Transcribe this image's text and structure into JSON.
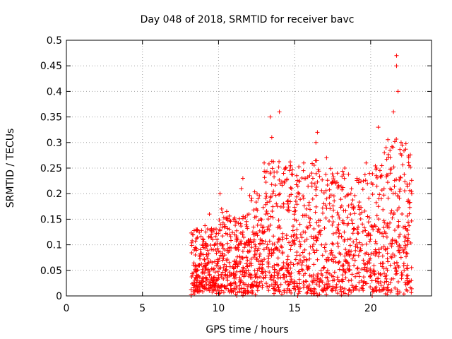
{
  "chart_data": {
    "type": "scatter",
    "title": "Day 048 of 2018, SRMTID for receiver bavc",
    "xlabel": "GPS time / hours",
    "ylabel": "SRMTID / TECUs",
    "xlim": [
      0,
      24
    ],
    "ylim": [
      0,
      0.5
    ],
    "xticks": [
      0,
      5,
      10,
      15,
      20
    ],
    "yticks": [
      0,
      0.05,
      0.1,
      0.15,
      0.2,
      0.25,
      0.3,
      0.35,
      0.4,
      0.45,
      0.5
    ],
    "grid": true,
    "marker": "+",
    "color": "#ff0000",
    "series": [
      {
        "name": "SRMTID bavc",
        "x_range": [
          8.2,
          22.7
        ],
        "notes": "dense cloud of several thousand points; representative points listed",
        "points": [
          [
            8.2,
            0.0
          ],
          [
            8.2,
            0.002
          ],
          [
            8.3,
            0.12
          ],
          [
            8.4,
            0.09
          ],
          [
            8.5,
            0.05
          ],
          [
            8.6,
            0.13
          ],
          [
            8.8,
            0.08
          ],
          [
            8.9,
            0.03
          ],
          [
            9.0,
            0.11
          ],
          [
            9.2,
            0.06
          ],
          [
            9.4,
            0.16
          ],
          [
            9.5,
            0.02
          ],
          [
            9.7,
            0.13
          ],
          [
            9.8,
            0.09
          ],
          [
            10.0,
            0.04
          ],
          [
            10.1,
            0.2
          ],
          [
            10.2,
            0.17
          ],
          [
            10.4,
            0.08
          ],
          [
            10.6,
            0.12
          ],
          [
            10.8,
            0.02
          ],
          [
            11.0,
            0.15
          ],
          [
            11.2,
            0.0
          ],
          [
            11.3,
            0.09
          ],
          [
            11.5,
            0.21
          ],
          [
            11.6,
            0.23
          ],
          [
            11.8,
            0.05
          ],
          [
            12.0,
            0.16
          ],
          [
            12.2,
            0.01
          ],
          [
            12.4,
            0.1
          ],
          [
            12.6,
            0.19
          ],
          [
            12.8,
            0.07
          ],
          [
            13.0,
            0.26
          ],
          [
            13.2,
            0.13
          ],
          [
            13.4,
            0.35
          ],
          [
            13.5,
            0.31
          ],
          [
            13.6,
            0.03
          ],
          [
            13.8,
            0.18
          ],
          [
            14.0,
            0.36
          ],
          [
            14.2,
            0.11
          ],
          [
            14.4,
            0.25
          ],
          [
            14.6,
            0.06
          ],
          [
            14.8,
            0.21
          ],
          [
            15.0,
            0.15
          ],
          [
            15.2,
            0.0
          ],
          [
            15.4,
            0.1
          ],
          [
            15.6,
            0.26
          ],
          [
            15.8,
            0.17
          ],
          [
            16.0,
            0.04
          ],
          [
            16.2,
            0.23
          ],
          [
            16.4,
            0.3
          ],
          [
            16.5,
            0.32
          ],
          [
            16.7,
            0.12
          ],
          [
            16.9,
            0.01
          ],
          [
            17.1,
            0.27
          ],
          [
            17.3,
            0.18
          ],
          [
            17.5,
            0.08
          ],
          [
            17.7,
            0.22
          ],
          [
            17.9,
            0.14
          ],
          [
            18.1,
            0.03
          ],
          [
            18.3,
            0.25
          ],
          [
            18.5,
            0.11
          ],
          [
            18.7,
            0.2
          ],
          [
            18.9,
            0.06
          ],
          [
            19.1,
            0.23
          ],
          [
            19.3,
            0.16
          ],
          [
            19.5,
            0.02
          ],
          [
            19.7,
            0.26
          ],
          [
            19.9,
            0.12
          ],
          [
            20.1,
            0.0
          ],
          [
            20.3,
            0.08
          ],
          [
            20.5,
            0.33
          ],
          [
            20.7,
            0.19
          ],
          [
            20.9,
            0.28
          ],
          [
            21.1,
            0.05
          ],
          [
            21.3,
            0.24
          ],
          [
            21.5,
            0.36
          ],
          [
            21.7,
            0.47
          ],
          [
            21.7,
            0.45
          ],
          [
            21.8,
            0.4
          ],
          [
            22.0,
            0.3
          ],
          [
            22.2,
            0.05
          ],
          [
            22.4,
            0.06
          ],
          [
            22.5,
            0.27
          ],
          [
            22.7,
            0.2
          ]
        ]
      }
    ]
  }
}
